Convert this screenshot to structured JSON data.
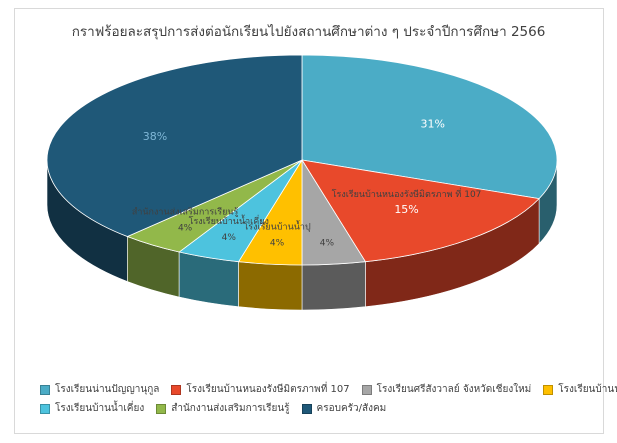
{
  "chart_data": {
    "type": "pie",
    "title": "กราฟร้อยละสรุปการส่งต่อนักเรียนไปยังสถานศึกษาต่าง ๆ ประจำปีการศึกษา 2566",
    "categories": [
      "โรงเรียนน่านปัญญานุกูล",
      "โรงเรียนบ้านหนองรังษีมิตรภาพที่ 107",
      "โรงเรียนศรีสังวาลย์ จังหวัดเชียงใหม่",
      "โรงเรียนบ้านน้ำปุ",
      "โรงเรียนบ้านน้ำเคี่ยง",
      "สำนักงานส่งเสริมการเรียนรู้",
      "ครอบครัว/สังคม"
    ],
    "values": [
      31,
      15,
      4,
      4,
      4,
      4,
      38
    ],
    "data_labels": [
      "31%",
      "15%",
      "4%",
      "4%",
      "4%",
      "4%",
      "38%"
    ],
    "slice_labels": [
      "",
      "โรงเรียนบ้านหนองรังษีมิตรภาพ ที่ 107",
      "",
      "โรงเรียนบ้านน้ำปุ",
      "โรงเรียนบ้านน้ำเคี่ยง",
      "สำนักงานส่งเสริมการเรียนรู้",
      ""
    ],
    "colors": [
      "#4bacc6",
      "#e8492b",
      "#a6a6a6",
      "#ffc000",
      "#4dc3de",
      "#92b84a",
      "#1f5878"
    ],
    "legend_position": "bottom"
  }
}
